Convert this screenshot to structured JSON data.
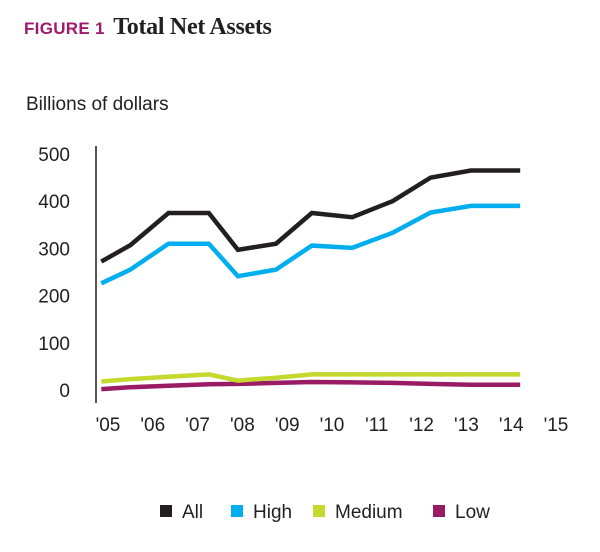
{
  "figure": {
    "label": "FIGURE 1",
    "title": "Total Net Assets"
  },
  "chart_data": {
    "type": "line",
    "title": "Total Net Assets",
    "ylabel": "Billions of dollars",
    "xlabel": "",
    "categories": [
      "'05",
      "'06",
      "'07",
      "'08",
      "'09",
      "'10",
      "'11",
      "'12",
      "'13",
      "'14",
      "'15"
    ],
    "y_ticks": [
      0,
      100,
      200,
      300,
      400,
      500
    ],
    "ylim": [
      0,
      500
    ],
    "grid": false,
    "legend_position": "bottom",
    "series": [
      {
        "name": "All",
        "color": "#231f20",
        "x": [
          2004.85,
          2005.5,
          2006.35,
          2007.25,
          2007.9,
          2008.75,
          2009.55,
          2010.45,
          2011.35,
          2012.2,
          2013.1,
          2014.2
        ],
        "values": [
          272,
          307,
          375,
          375,
          297,
          310,
          375,
          366,
          400,
          450,
          465,
          465
        ]
      },
      {
        "name": "High",
        "color": "#00aeef",
        "x": [
          2004.85,
          2005.5,
          2006.35,
          2007.25,
          2007.9,
          2008.75,
          2009.55,
          2010.45,
          2011.35,
          2012.2,
          2013.1,
          2014.2
        ],
        "values": [
          226,
          255,
          310,
          310,
          241,
          255,
          306,
          301,
          333,
          376,
          390,
          390
        ]
      },
      {
        "name": "Medium",
        "color": "#c4d82e",
        "x": [
          2004.85,
          2005.5,
          2006.35,
          2007.25,
          2007.9,
          2008.75,
          2009.55,
          2010.45,
          2011.35,
          2012.2,
          2013.1,
          2014.2
        ],
        "values": [
          18,
          23,
          28,
          33,
          20,
          26,
          33,
          33,
          33,
          33,
          33,
          33
        ]
      },
      {
        "name": "Low",
        "color": "#991b64",
        "x": [
          2004.85,
          2005.5,
          2006.35,
          2007.25,
          2007.9,
          2008.75,
          2009.55,
          2010.45,
          2011.35,
          2012.2,
          2013.1,
          2014.2
        ],
        "values": [
          2,
          6,
          9,
          12,
          13,
          15,
          17,
          16,
          15,
          13,
          11,
          11
        ]
      }
    ]
  }
}
